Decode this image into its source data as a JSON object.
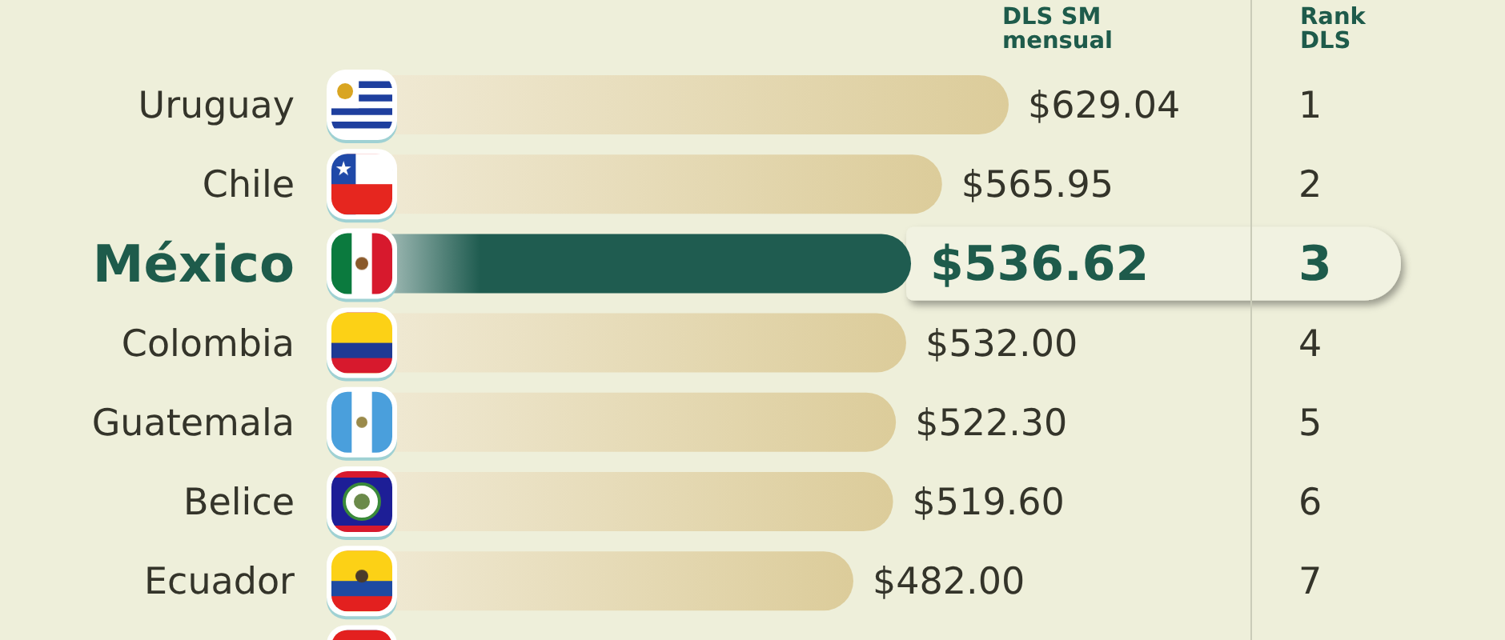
{
  "chart_data": {
    "type": "bar",
    "orientation": "horizontal",
    "categories": [
      "Uruguay",
      "Chile",
      "México",
      "Colombia",
      "Guatemala",
      "Belice",
      "Ecuador",
      null
    ],
    "values": [
      629.04,
      565.95,
      536.62,
      532.0,
      522.3,
      519.6,
      482.0,
      null
    ],
    "value_labels": [
      "$629.04",
      "$565.95",
      "$536.62",
      "$532.00",
      "$522.30",
      "$519.60",
      "$482.00",
      null
    ],
    "colors": [
      "#dccc9a",
      "#dccc9a",
      "#1f5c50",
      "#dccc9a",
      "#dccc9a",
      "#dccc9a",
      "#dccc9a",
      "#dccc9a"
    ],
    "tick_labels": "y",
    "annotations": [
      "DLS SM\nmensual",
      "Rank\nDLS",
      "1",
      "2",
      "3",
      "4",
      "5",
      "6",
      "7"
    ]
  }
}
